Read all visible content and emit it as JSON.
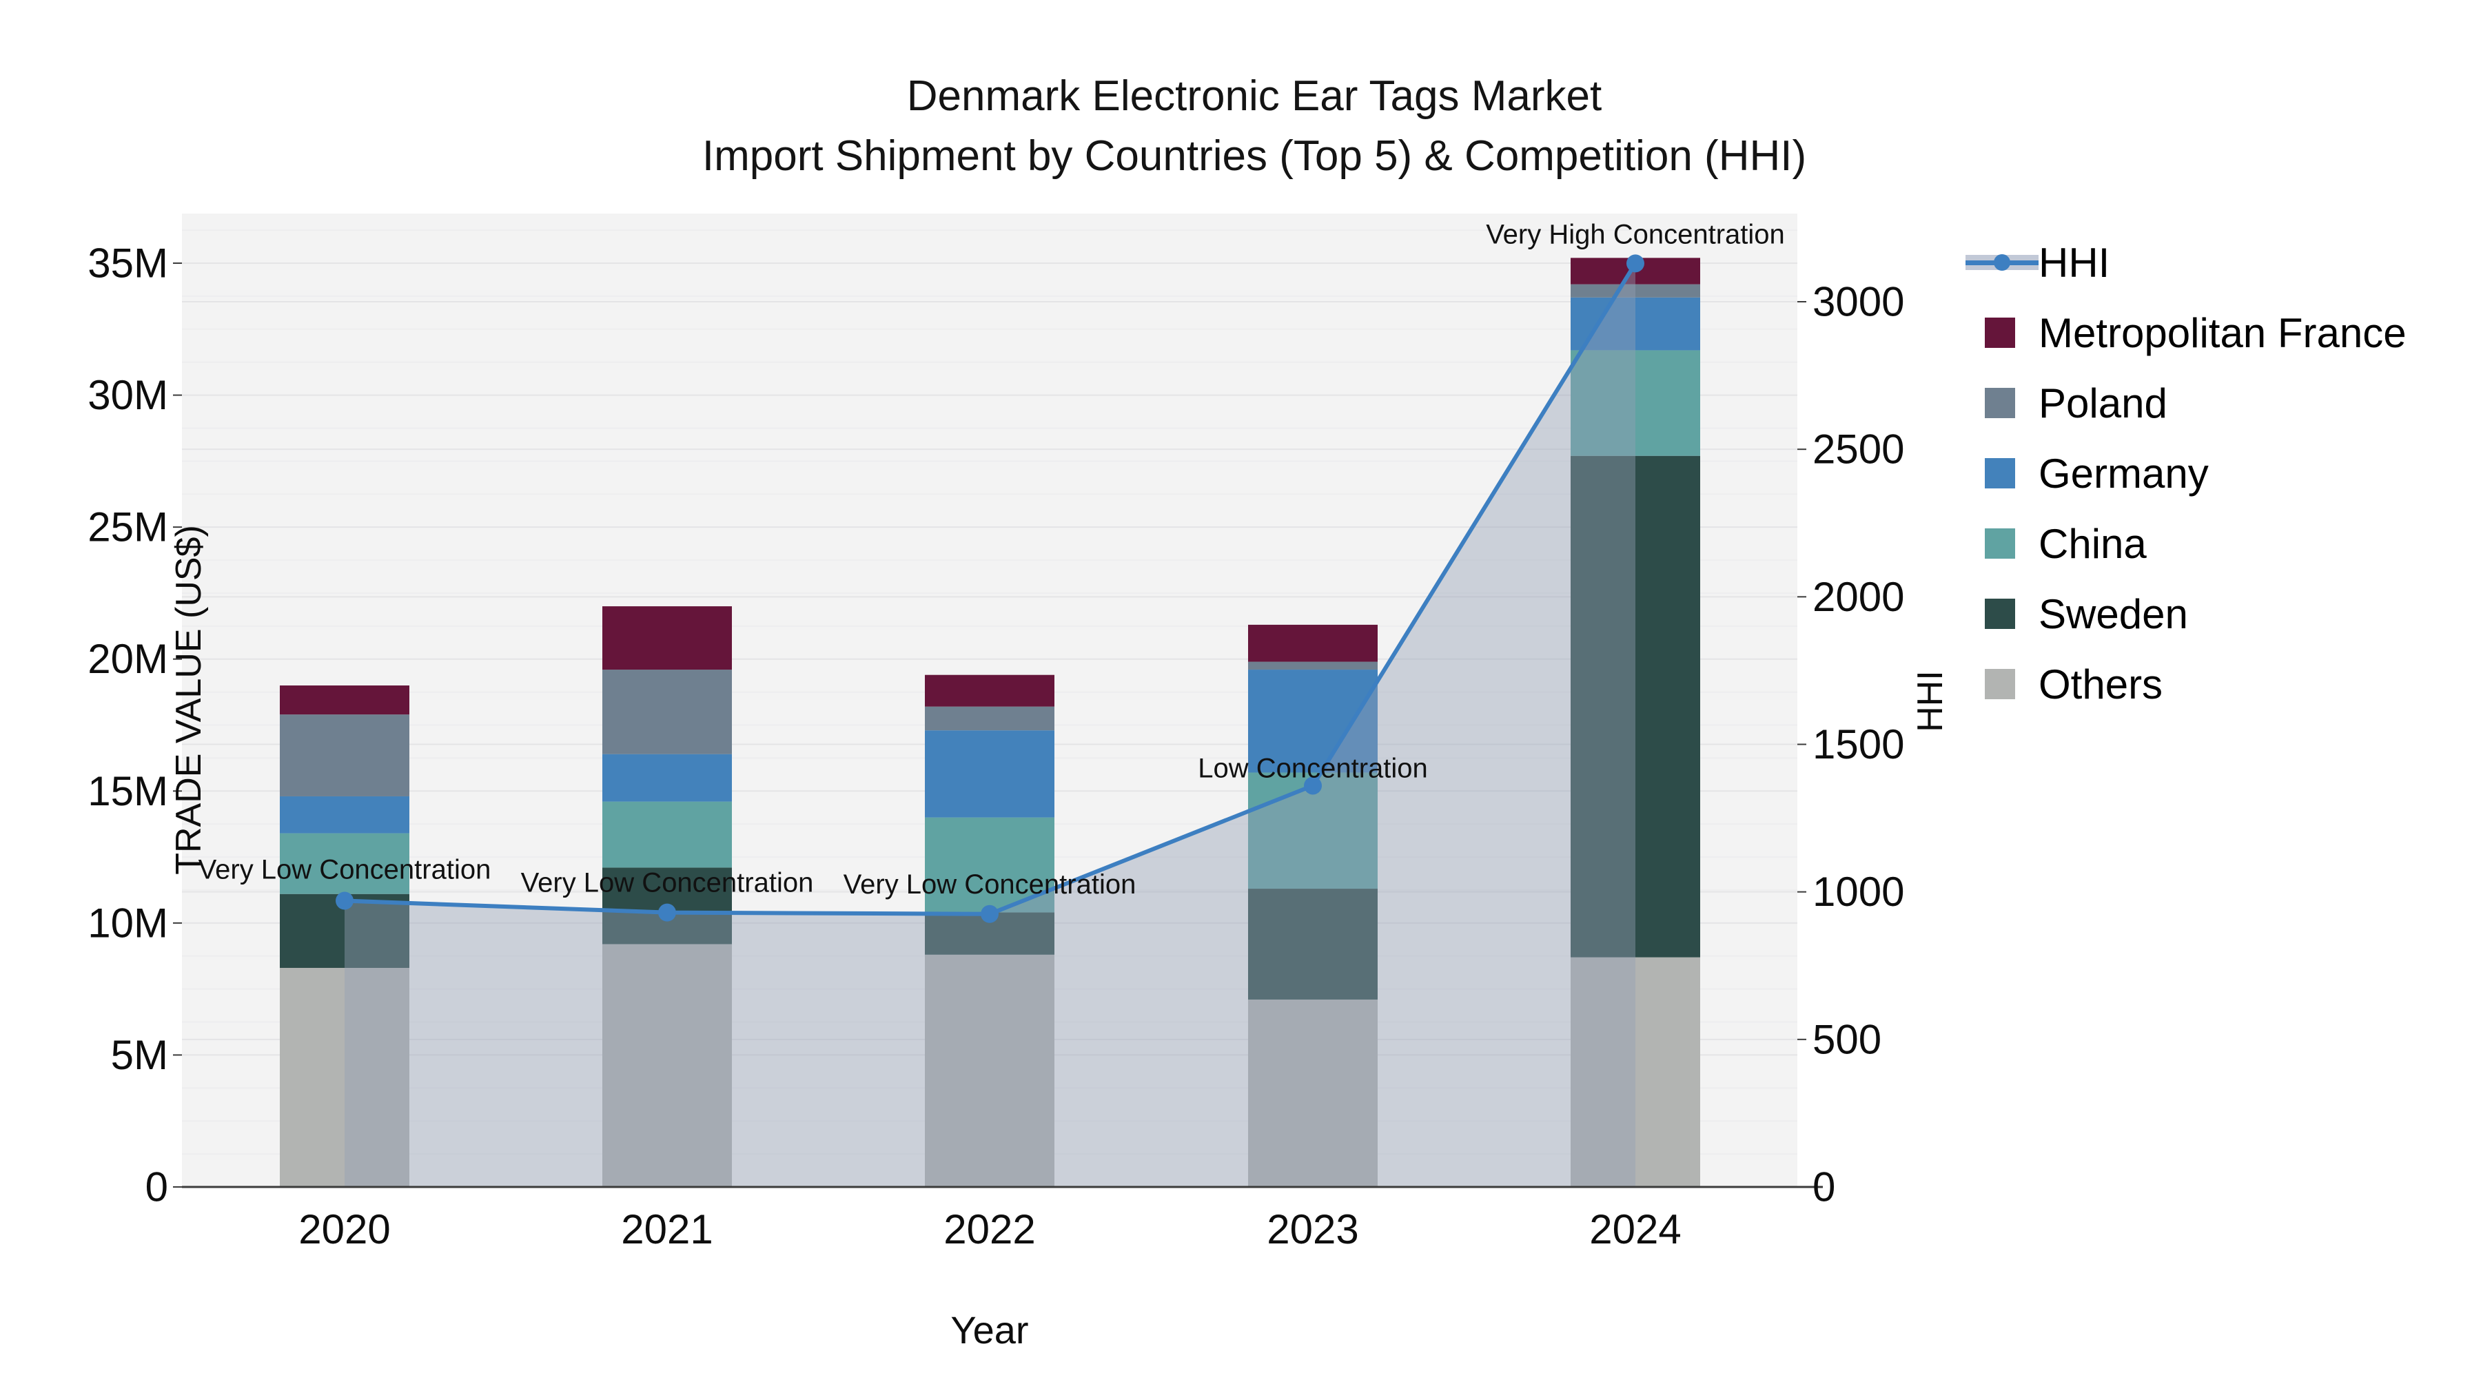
{
  "title": {
    "line1": "Denmark Electronic Ear Tags Market",
    "line2": "Import Shipment by Countries (Top 5) & Competition (HHI)"
  },
  "axes": {
    "left": {
      "label": "TRADE VALUE (US$)",
      "tick_values": [
        0,
        5,
        10,
        15,
        20,
        25,
        30,
        35
      ],
      "tick_labels": [
        "0",
        "5M",
        "10M",
        "15M",
        "20M",
        "25M",
        "30M",
        "35M"
      ]
    },
    "right": {
      "label": "HHI",
      "tick_values": [
        0,
        500,
        1000,
        1500,
        2000,
        2500,
        3000
      ],
      "tick_labels": [
        "0",
        "500",
        "1000",
        "1500",
        "2000",
        "2500",
        "3000"
      ]
    },
    "x": {
      "label": "Year",
      "categories": [
        "2020",
        "2021",
        "2022",
        "2023",
        "2024"
      ]
    }
  },
  "chart_data": {
    "type": "bar",
    "subtype": "stacked-bars-with-line-overlay",
    "categories": [
      "2020",
      "2021",
      "2022",
      "2023",
      "2024"
    ],
    "unit_bars": "million US$",
    "series": [
      {
        "name": "Others",
        "color": "#b2b4b2",
        "values": [
          8.3,
          9.2,
          8.8,
          7.1,
          8.7
        ]
      },
      {
        "name": "Sweden",
        "color": "#2d4c49",
        "values": [
          2.8,
          2.9,
          1.6,
          4.2,
          19.0
        ]
      },
      {
        "name": "China",
        "color": "#60a3a2",
        "values": [
          2.3,
          2.5,
          3.6,
          4.4,
          4.0
        ]
      },
      {
        "name": "Germany",
        "color": "#4382bb",
        "values": [
          1.4,
          1.8,
          3.3,
          3.9,
          2.0
        ]
      },
      {
        "name": "Poland",
        "color": "#6f8090",
        "values": [
          3.1,
          3.2,
          0.9,
          0.3,
          0.5
        ]
      },
      {
        "name": "Metropolitan France",
        "color": "#65153a",
        "values": [
          1.1,
          2.4,
          1.2,
          1.4,
          1.0
        ]
      }
    ],
    "bar_totals": [
      19.0,
      22.0,
      19.4,
      21.3,
      35.2
    ],
    "line_series": {
      "name": "HHI",
      "color": "#3d7fc1",
      "area_fill": "rgba(148,159,180,0.42)",
      "values": [
        970,
        930,
        925,
        1360,
        3130
      ]
    },
    "annotations": [
      {
        "category": "2020",
        "text": "Very Low Concentration"
      },
      {
        "category": "2021",
        "text": "Very Low Concentration"
      },
      {
        "category": "2022",
        "text": "Very Low Concentration"
      },
      {
        "category": "2023",
        "text": "Low Concentration"
      },
      {
        "category": "2024",
        "text": "Very High Concentration"
      }
    ],
    "title": "Denmark Electronic Ear Tags Market — Import Shipment by Countries (Top 5) & Competition (HHI)",
    "xlabel": "Year",
    "ylabel_left": "TRADE VALUE (US$)",
    "ylabel_right": "HHI",
    "ylim_left": [
      0,
      36.9
    ],
    "ylim_right": [
      0,
      3300
    ],
    "grid": true,
    "legend_position": "right-top"
  },
  "legend": {
    "items": [
      {
        "label": "HHI",
        "type": "line",
        "color": "#3d7fc1"
      },
      {
        "label": "Metropolitan France",
        "type": "swatch",
        "color": "#65153a"
      },
      {
        "label": "Poland",
        "type": "swatch",
        "color": "#6f8090"
      },
      {
        "label": "Germany",
        "type": "swatch",
        "color": "#4382bb"
      },
      {
        "label": "China",
        "type": "swatch",
        "color": "#60a3a2"
      },
      {
        "label": "Sweden",
        "type": "swatch",
        "color": "#2d4c49"
      },
      {
        "label": "Others",
        "type": "swatch",
        "color": "#b2b4b2"
      }
    ]
  },
  "colors": {
    "plot_background": "#f3f3f3",
    "grid_major": "#e4e4e6",
    "grid_minor": "#ececee",
    "axis_spine": "#3b3b3b",
    "text": "#0d0d0d"
  }
}
